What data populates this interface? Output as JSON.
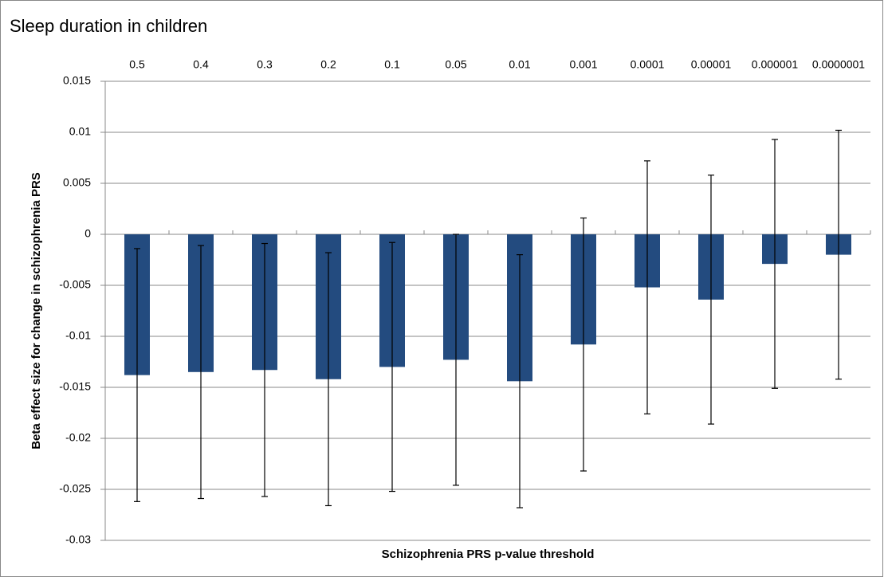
{
  "chart_data": {
    "type": "bar",
    "title": "Sleep duration in children",
    "x_label": "Schizophrenia PRS p-value threshold",
    "y_label": "Beta effect size for change in schizophrenia PRS",
    "categories": [
      "0.5",
      "0.4",
      "0.3",
      "0.2",
      "0.1",
      "0.05",
      "0.01",
      "0.001",
      "0.0001",
      "0.00001",
      "0.000001",
      "0.0000001"
    ],
    "values": [
      -0.0138,
      -0.0135,
      -0.0133,
      -0.0142,
      -0.013,
      -0.0123,
      -0.0144,
      -0.0108,
      -0.0052,
      -0.0064,
      -0.0029,
      -0.002
    ],
    "errors": [
      0.0124,
      0.0124,
      0.0124,
      0.0124,
      0.0122,
      0.0123,
      0.0124,
      0.0124,
      0.0124,
      0.0122,
      0.0122,
      0.0122
    ],
    "color": "#234b7f",
    "ylim": [
      -0.03,
      0.015
    ],
    "yticks": [
      0.015,
      0.01,
      0.005,
      0,
      -0.005,
      -0.01,
      -0.015,
      -0.02,
      -0.025,
      -0.03
    ],
    "grid": true
  }
}
